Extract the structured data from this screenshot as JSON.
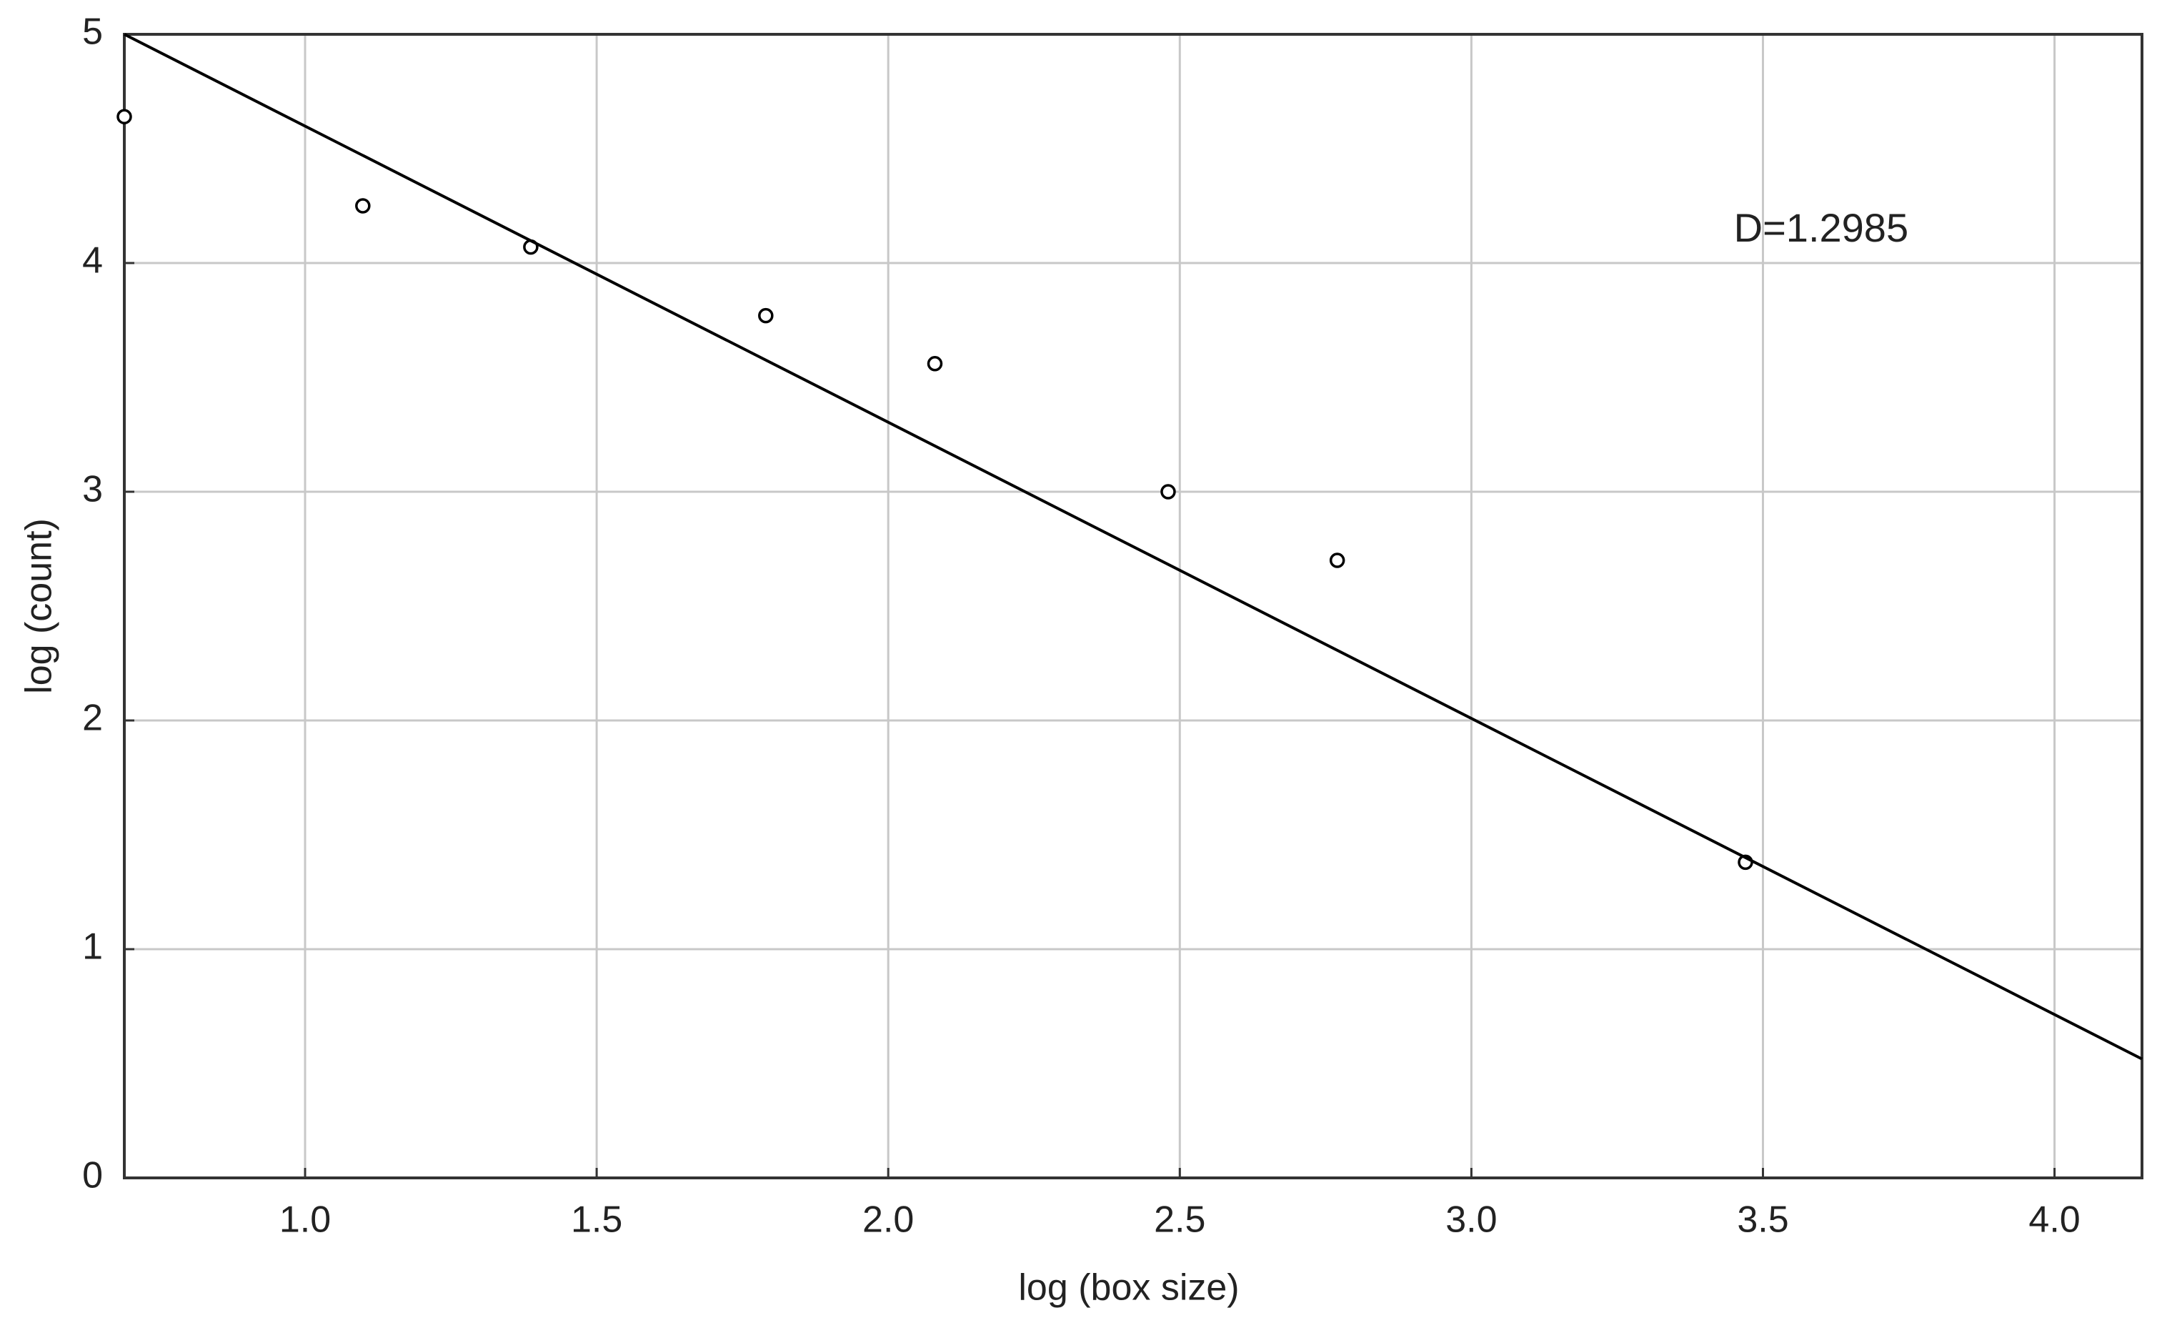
{
  "chart_data": {
    "type": "scatter",
    "xlabel": "log (box size)",
    "ylabel": "log (count)",
    "xlim": [
      0.69,
      4.15
    ],
    "ylim": [
      0,
      5
    ],
    "xticks": [
      {
        "value": 1.0,
        "label": "1.0"
      },
      {
        "value": 1.5,
        "label": "1.5"
      },
      {
        "value": 2.0,
        "label": "2.0"
      },
      {
        "value": 2.5,
        "label": "2.5"
      },
      {
        "value": 3.0,
        "label": "3.0"
      },
      {
        "value": 3.5,
        "label": "3.5"
      },
      {
        "value": 4.0,
        "label": "4.0"
      }
    ],
    "yticks": [
      0,
      1,
      2,
      3,
      4,
      5
    ],
    "grid": true,
    "series": [
      {
        "style": "markers",
        "color": "#000000",
        "x": [
          0.69,
          1.099,
          1.387,
          1.79,
          2.08,
          2.48,
          2.77,
          3.47
        ],
        "values": [
          4.64,
          4.25,
          4.07,
          3.77,
          3.56,
          3.0,
          2.7,
          1.38
        ]
      },
      {
        "style": "line",
        "color": "#000000",
        "x": [
          0.69,
          4.15
        ],
        "values": [
          5.0,
          0.52
        ]
      }
    ],
    "annotations": [
      {
        "text": "D=1.2985",
        "x": 3.45,
        "y": 4.14
      }
    ]
  }
}
